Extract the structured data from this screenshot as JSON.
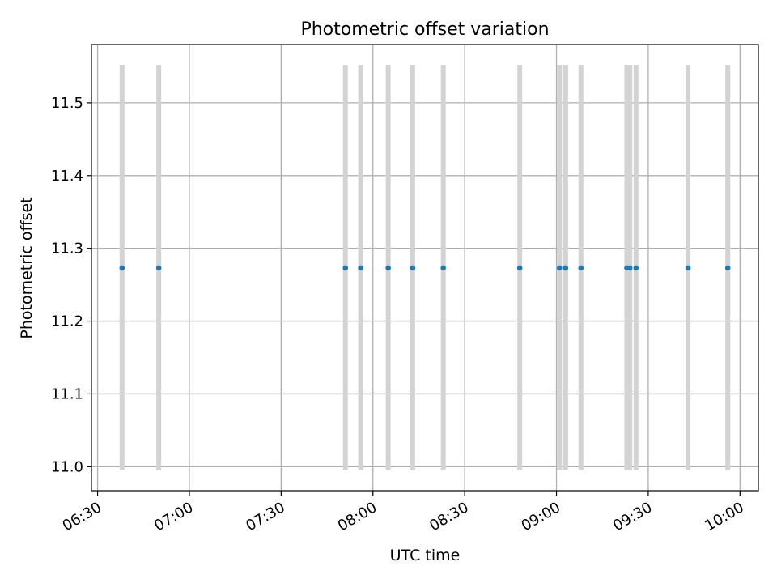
{
  "chart_data": {
    "type": "scatter",
    "title": "Photometric offset variation",
    "xlabel": "UTC time",
    "ylabel": "Photometric offset",
    "x_ticks": [
      "06:30",
      "07:00",
      "07:30",
      "08:00",
      "08:30",
      "09:00",
      "09:30",
      "10:00"
    ],
    "y_ticks": [
      "11.0",
      "11.1",
      "11.2",
      "11.3",
      "11.4",
      "11.5"
    ],
    "xlim": [
      "06:28",
      "10:06"
    ],
    "ylim": [
      10.967,
      11.58
    ],
    "grid": true,
    "error_bar_range": [
      10.995,
      11.552
    ],
    "colors": {
      "points": "#1f77b4",
      "error_bars": "#d3d3d3",
      "grid": "#b0b0b0"
    },
    "series": [
      {
        "x": [
          "06:38",
          "06:50",
          "07:51",
          "07:56",
          "08:05",
          "08:13",
          "08:23",
          "08:48",
          "09:01",
          "09:03",
          "09:08",
          "09:23",
          "09:24",
          "09:26",
          "09:43",
          "09:56"
        ],
        "y": [
          11.273,
          11.273,
          11.273,
          11.273,
          11.273,
          11.273,
          11.273,
          11.273,
          11.273,
          11.273,
          11.273,
          11.273,
          11.273,
          11.273,
          11.273,
          11.273
        ]
      }
    ]
  }
}
